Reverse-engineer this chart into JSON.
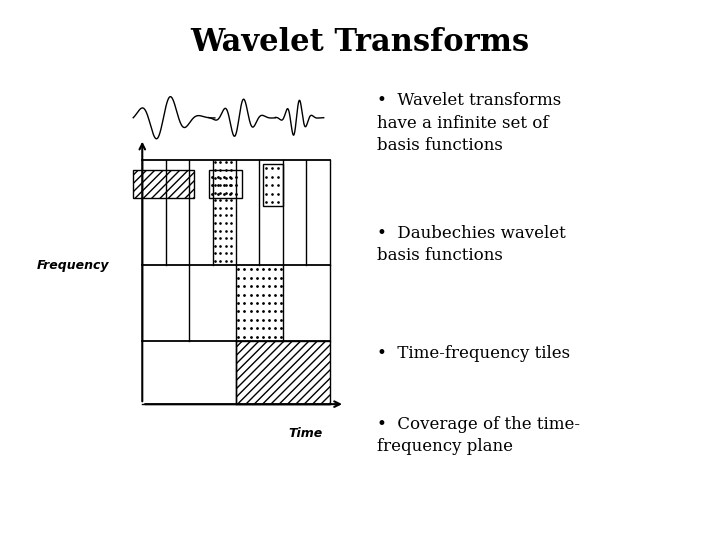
{
  "title": "Wavelet Transforms",
  "title_fontsize": 22,
  "title_fontweight": "bold",
  "background_color": "#ffffff",
  "bullet_points": [
    "Wavelet transforms\nhave a infinite set of\nbasis functions",
    "Daubechies wavelet\nbasis functions",
    "Time-frequency tiles",
    "Coverage of the time-\nfrequency plane"
  ],
  "freq_label": "Frequency",
  "time_label": "Time"
}
